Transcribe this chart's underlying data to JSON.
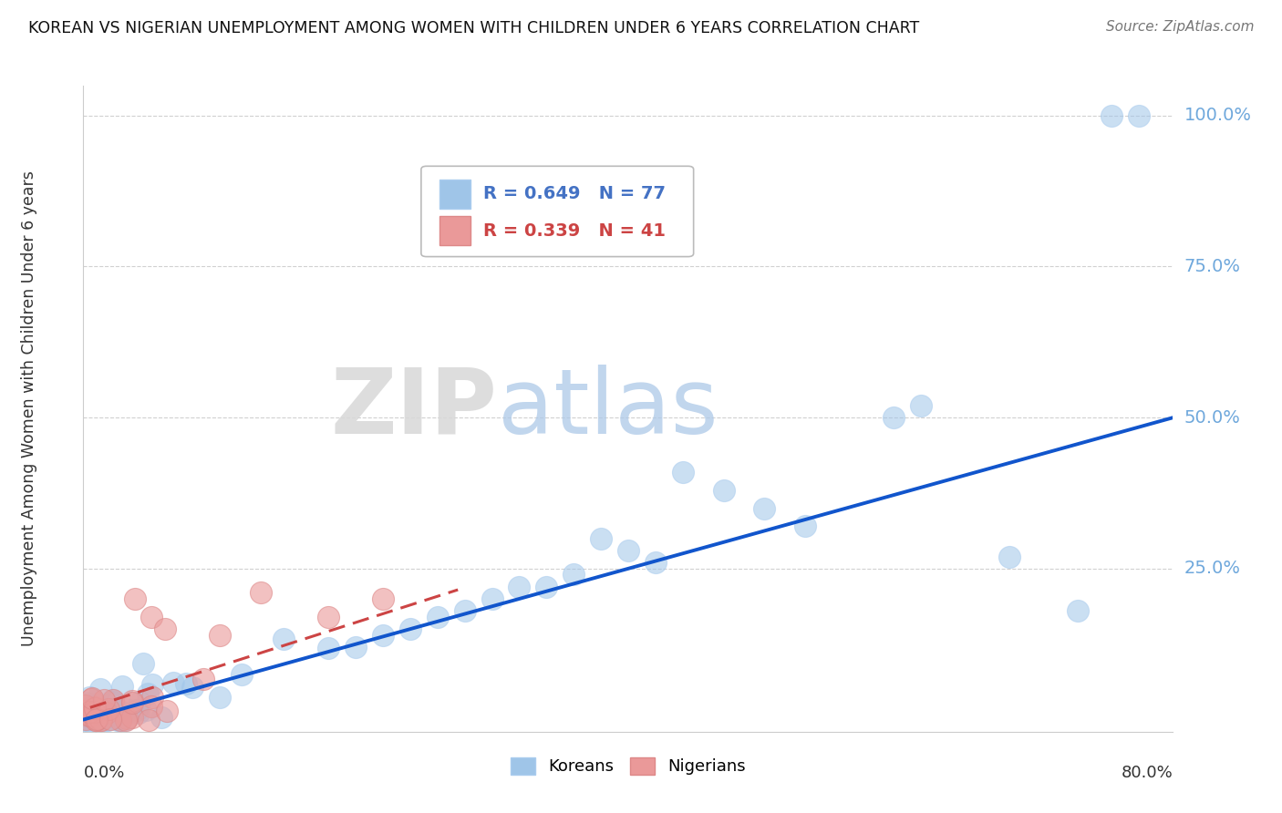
{
  "title": "KOREAN VS NIGERIAN UNEMPLOYMENT AMONG WOMEN WITH CHILDREN UNDER 6 YEARS CORRELATION CHART",
  "source": "Source: ZipAtlas.com",
  "ylabel": "Unemployment Among Women with Children Under 6 years",
  "xlim": [
    0.0,
    0.8
  ],
  "ylim": [
    -0.02,
    1.05
  ],
  "korean_R": 0.649,
  "korean_N": 77,
  "nigerian_R": 0.339,
  "nigerian_N": 41,
  "korean_color": "#9fc5e8",
  "nigerian_color": "#ea9999",
  "korean_line_color": "#1155cc",
  "nigerian_line_color": "#cc4444",
  "watermark_zip": "ZIP",
  "watermark_atlas": "atlas",
  "background_color": "#ffffff",
  "grid_color": "#d0d0d0",
  "ytick_positions": [
    0.25,
    0.5,
    0.75,
    1.0
  ],
  "ytick_labels": [
    "25.0%",
    "50.0%",
    "75.0%",
    "100.0%"
  ],
  "ytick_color": "#6fa8dc",
  "korean_line_x": [
    0.0,
    0.8
  ],
  "korean_line_y": [
    0.0,
    0.5
  ],
  "nigerian_line_x": [
    0.005,
    0.275
  ],
  "nigerian_line_y": [
    0.02,
    0.215
  ]
}
